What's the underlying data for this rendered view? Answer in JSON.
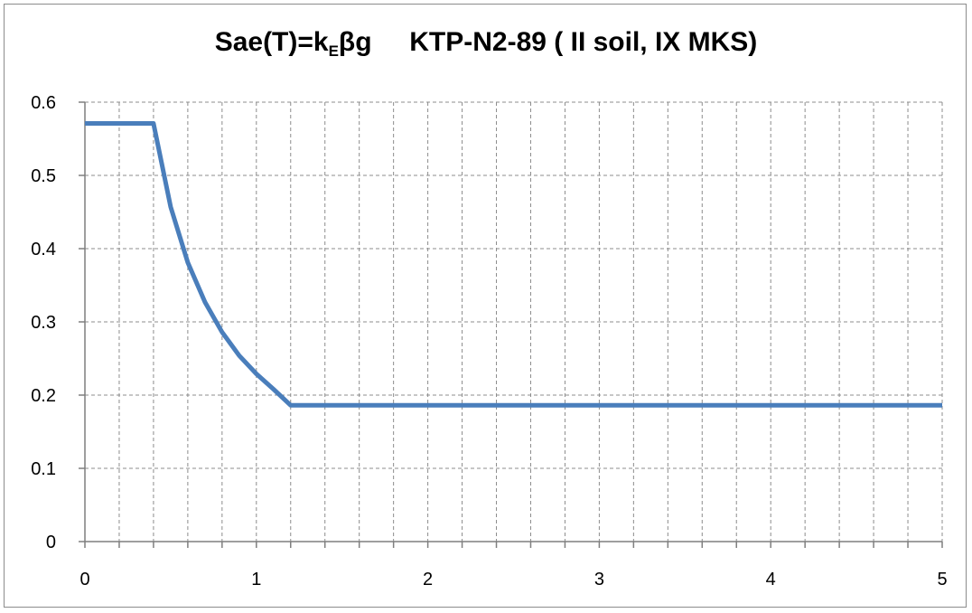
{
  "chart_data": {
    "type": "line",
    "title": {
      "part1": "Sae(T)=k",
      "sub": "E",
      "part2": "βg",
      "part3": "KTP-N2-89 ( II soil, IX MKS)"
    },
    "xlabel": "",
    "ylabel": "",
    "xlim": [
      0,
      5
    ],
    "ylim": [
      0,
      0.6
    ],
    "x_ticks": [
      "0",
      "1",
      "2",
      "3",
      "4",
      "5"
    ],
    "y_ticks": [
      "0",
      "0.1",
      "0.2",
      "0.3",
      "0.4",
      "0.5",
      "0.6"
    ],
    "x_tick_values": [
      0,
      1,
      2,
      3,
      4,
      5
    ],
    "y_tick_values": [
      0,
      0.1,
      0.2,
      0.3,
      0.4,
      0.5,
      0.6
    ],
    "x_minor_step": 0.2,
    "grid": "dashed vertical every 0.2 and horizontal every 0.1",
    "series": [
      {
        "color": "#4a7ebb",
        "x": [
          0,
          0.2,
          0.4,
          0.5,
          0.6,
          0.7,
          0.8,
          0.9,
          1.0,
          1.1,
          1.2,
          2.0,
          3.0,
          4.0,
          5.0
        ],
        "y": [
          0.571,
          0.571,
          0.571,
          0.457,
          0.381,
          0.327,
          0.286,
          0.254,
          0.229,
          0.208,
          0.186,
          0.186,
          0.186,
          0.186,
          0.186
        ]
      }
    ]
  }
}
